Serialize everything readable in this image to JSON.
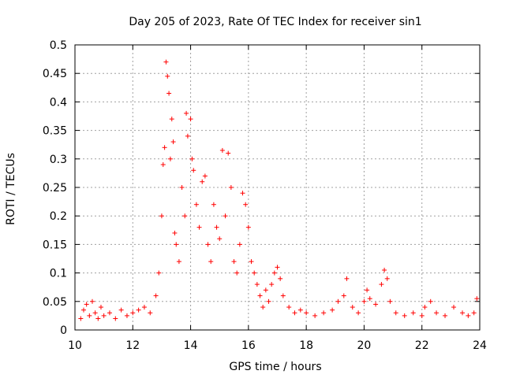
{
  "chart_data": {
    "type": "scatter",
    "title": "Day 205 of 2023, Rate Of TEC Index for receiver sin1",
    "xlabel": "GPS time / hours",
    "ylabel": "ROTI / TECUs",
    "xlim": [
      10,
      24
    ],
    "ylim": [
      0,
      0.5
    ],
    "x_ticks": [
      "10",
      "12",
      "14",
      "16",
      "18",
      "20",
      "22",
      "24"
    ],
    "y_ticks": [
      "0",
      "0.05",
      "0.1",
      "0.15",
      "0.2",
      "0.25",
      "0.3",
      "0.35",
      "0.4",
      "0.45",
      "0.5"
    ],
    "grid": true,
    "marker": "plus",
    "color": "#ff0000",
    "series": [
      {
        "points": [
          [
            10.2,
            0.02
          ],
          [
            10.3,
            0.035
          ],
          [
            10.4,
            0.045
          ],
          [
            10.5,
            0.025
          ],
          [
            10.6,
            0.05
          ],
          [
            10.7,
            0.03
          ],
          [
            10.8,
            0.02
          ],
          [
            10.9,
            0.04
          ],
          [
            11.0,
            0.025
          ],
          [
            11.2,
            0.03
          ],
          [
            11.4,
            0.02
          ],
          [
            11.6,
            0.035
          ],
          [
            11.8,
            0.025
          ],
          [
            12.0,
            0.03
          ],
          [
            12.2,
            0.035
          ],
          [
            12.4,
            0.04
          ],
          [
            12.6,
            0.03
          ],
          [
            12.8,
            0.06
          ],
          [
            12.9,
            0.1
          ],
          [
            13.0,
            0.2
          ],
          [
            13.05,
            0.29
          ],
          [
            13.1,
            0.32
          ],
          [
            13.15,
            0.47
          ],
          [
            13.2,
            0.445
          ],
          [
            13.25,
            0.415
          ],
          [
            13.3,
            0.3
          ],
          [
            13.35,
            0.37
          ],
          [
            13.4,
            0.33
          ],
          [
            13.45,
            0.17
          ],
          [
            13.5,
            0.15
          ],
          [
            13.6,
            0.12
          ],
          [
            13.7,
            0.25
          ],
          [
            13.8,
            0.2
          ],
          [
            13.85,
            0.38
          ],
          [
            13.9,
            0.34
          ],
          [
            14.0,
            0.37
          ],
          [
            14.05,
            0.3
          ],
          [
            14.1,
            0.28
          ],
          [
            14.2,
            0.22
          ],
          [
            14.3,
            0.18
          ],
          [
            14.4,
            0.26
          ],
          [
            14.5,
            0.27
          ],
          [
            14.6,
            0.15
          ],
          [
            14.7,
            0.12
          ],
          [
            14.8,
            0.22
          ],
          [
            14.9,
            0.18
          ],
          [
            15.0,
            0.16
          ],
          [
            15.1,
            0.315
          ],
          [
            15.2,
            0.2
          ],
          [
            15.3,
            0.31
          ],
          [
            15.4,
            0.25
          ],
          [
            15.5,
            0.12
          ],
          [
            15.6,
            0.1
          ],
          [
            15.7,
            0.15
          ],
          [
            15.8,
            0.24
          ],
          [
            15.9,
            0.22
          ],
          [
            16.0,
            0.18
          ],
          [
            16.1,
            0.12
          ],
          [
            16.2,
            0.1
          ],
          [
            16.3,
            0.08
          ],
          [
            16.4,
            0.06
          ],
          [
            16.5,
            0.04
          ],
          [
            16.6,
            0.07
          ],
          [
            16.7,
            0.05
          ],
          [
            16.8,
            0.08
          ],
          [
            16.9,
            0.1
          ],
          [
            17.0,
            0.11
          ],
          [
            17.1,
            0.09
          ],
          [
            17.2,
            0.06
          ],
          [
            17.4,
            0.04
          ],
          [
            17.6,
            0.03
          ],
          [
            17.8,
            0.035
          ],
          [
            18.0,
            0.03
          ],
          [
            18.3,
            0.025
          ],
          [
            18.6,
            0.03
          ],
          [
            18.9,
            0.035
          ],
          [
            19.1,
            0.05
          ],
          [
            19.3,
            0.06
          ],
          [
            19.4,
            0.09
          ],
          [
            19.6,
            0.04
          ],
          [
            19.8,
            0.03
          ],
          [
            20.0,
            0.05
          ],
          [
            20.1,
            0.07
          ],
          [
            20.2,
            0.055
          ],
          [
            20.4,
            0.045
          ],
          [
            20.6,
            0.08
          ],
          [
            20.7,
            0.105
          ],
          [
            20.8,
            0.09
          ],
          [
            20.9,
            0.05
          ],
          [
            21.1,
            0.03
          ],
          [
            21.4,
            0.025
          ],
          [
            21.7,
            0.03
          ],
          [
            22.0,
            0.025
          ],
          [
            22.1,
            0.04
          ],
          [
            22.3,
            0.05
          ],
          [
            22.5,
            0.03
          ],
          [
            22.8,
            0.025
          ],
          [
            23.1,
            0.04
          ],
          [
            23.4,
            0.03
          ],
          [
            23.6,
            0.025
          ],
          [
            23.8,
            0.03
          ],
          [
            23.9,
            0.055
          ]
        ]
      }
    ]
  }
}
